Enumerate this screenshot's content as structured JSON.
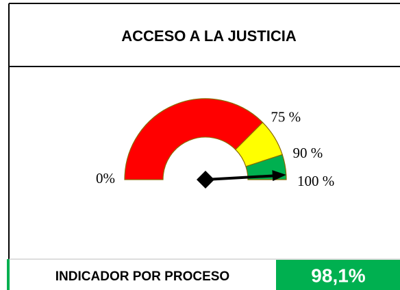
{
  "chart_data": {
    "type": "gauge",
    "title": "ACCESO A LA JUSTICIA",
    "lim": [
      0,
      100
    ],
    "bands": [
      {
        "value": 75,
        "color": "#ff0000"
      },
      {
        "value": 15,
        "color": "#ffff00"
      },
      {
        "value": 10,
        "color": "#00b050"
      }
    ],
    "ticks": [
      {
        "value": 0,
        "label": "0%"
      },
      {
        "value": 75,
        "label": "75 %"
      },
      {
        "value": 90,
        "label": "90 %"
      },
      {
        "value": 100,
        "label": "100 %"
      }
    ],
    "indicator_label": "INDICADOR POR PROCESO",
    "value": 98.1,
    "value_label": "98,1%",
    "value_color": "#00b050"
  }
}
